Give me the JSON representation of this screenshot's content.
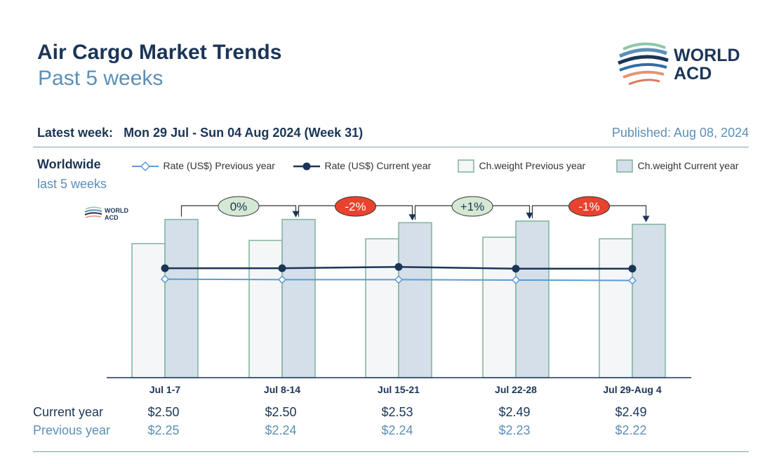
{
  "header": {
    "title": "Air Cargo Market Trends",
    "subtitle": "Past 5 weeks",
    "logo_text_line1": "WORLD",
    "logo_text_line2": "ACD"
  },
  "week_info": {
    "label": "Latest week:",
    "value": "Mon 29 Jul - Sun 04 Aug 2024 (Week 31)",
    "published": "Published: Aug 08, 2024"
  },
  "region": {
    "name": "Worldwide",
    "period": "last 5 weeks"
  },
  "legend": [
    {
      "label": "Rate (US$) Previous year",
      "kind": "line-diamond",
      "color": "#5b9bd5"
    },
    {
      "label": "Rate (US$) Current year",
      "kind": "line-dot",
      "color": "#1b3557"
    },
    {
      "label": "Ch.weight Previous year",
      "kind": "box",
      "color": "#f4f6f8"
    },
    {
      "label": "Ch.weight Current year",
      "kind": "box",
      "color": "#d4dfe9"
    }
  ],
  "chart_data": {
    "type": "bar",
    "categories": [
      "Jul 1-7",
      "Jul 8-14",
      "Jul 15-21",
      "Jul 22-28",
      "Jul 29-Aug 4"
    ],
    "series": [
      {
        "name": "Ch.weight Previous year",
        "type": "bar",
        "values": [
          0.83,
          0.85,
          0.86,
          0.87,
          0.86
        ]
      },
      {
        "name": "Ch.weight Current year",
        "type": "bar",
        "values": [
          0.98,
          0.98,
          0.96,
          0.97,
          0.95
        ]
      },
      {
        "name": "Rate (US$) Previous year",
        "type": "line",
        "values": [
          2.25,
          2.24,
          2.24,
          2.23,
          2.22
        ]
      },
      {
        "name": "Rate (US$) Current year",
        "type": "line",
        "values": [
          2.5,
          2.5,
          2.53,
          2.49,
          2.49
        ]
      }
    ],
    "changes": [
      "0%",
      "-2%",
      "+1%",
      "-1%"
    ],
    "change_colors": [
      "#d5e8d4",
      "#e8432f",
      "#d5e8d4",
      "#e8432f"
    ],
    "rate_axis": [
      0,
      3.5
    ],
    "weight_axis": [
      0,
      1.0
    ],
    "table": {
      "current_label": "Current year",
      "previous_label": "Previous year",
      "current": [
        "$2.50",
        "$2.50",
        "$2.53",
        "$2.49",
        "$2.49"
      ],
      "previous": [
        "$2.25",
        "$2.24",
        "$2.24",
        "$2.23",
        "$2.22"
      ]
    }
  }
}
